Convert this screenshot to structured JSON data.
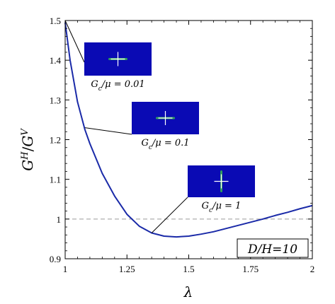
{
  "chart_data": {
    "type": "line",
    "xlabel": "λ",
    "ylabel": "G^H/G^V",
    "ylabel_parts": {
      "base1": "G",
      "sup1": "H",
      "slash": "/",
      "base2": "G",
      "sup2": "V"
    },
    "xlim": [
      1,
      2
    ],
    "ylim": [
      0.9,
      1.5
    ],
    "x_ticks": [
      1,
      1.25,
      1.5,
      1.75,
      2
    ],
    "x_tick_labels": [
      "1",
      "1.25",
      "1.5",
      "1.75",
      "2"
    ],
    "y_ticks": [
      0.9,
      1,
      1.1,
      1.2,
      1.3,
      1.4,
      1.5
    ],
    "y_tick_labels": [
      "0.9",
      "1",
      "1.1",
      "1.2",
      "1.3",
      "1.4",
      "1.5"
    ],
    "grid": false,
    "reference_line": {
      "y": 1.0,
      "style": "dashed",
      "color": "#9a9a9a"
    },
    "series": [
      {
        "color": "#1a2aa8",
        "x": [
          1.0,
          1.02,
          1.05,
          1.08,
          1.1,
          1.15,
          1.2,
          1.25,
          1.3,
          1.35,
          1.4,
          1.45,
          1.5,
          1.55,
          1.6,
          1.65,
          1.7,
          1.75,
          1.8,
          1.85,
          1.9,
          1.95,
          2.0
        ],
        "y": [
          1.495,
          1.4,
          1.295,
          1.225,
          1.19,
          1.115,
          1.058,
          1.012,
          0.982,
          0.965,
          0.957,
          0.955,
          0.957,
          0.962,
          0.968,
          0.976,
          0.984,
          0.992,
          1.0,
          1.009,
          1.017,
          1.026,
          1.034
        ]
      }
    ],
    "annotations": [
      {
        "label": "G_c/μ = 0.01",
        "prefix": "G",
        "sub": "c",
        "suffix": "/μ = 0.01",
        "point": [
          1.0,
          1.5
        ],
        "orientation": "horizontal"
      },
      {
        "label": "G_c/μ = 0.1",
        "prefix": "G",
        "sub": "c",
        "suffix": "/μ = 0.1",
        "point": [
          1.08,
          1.23
        ],
        "orientation": "horizontal"
      },
      {
        "label": "G_c/μ = 1",
        "prefix": "G",
        "sub": "c",
        "suffix": "/μ = 1",
        "point": [
          1.35,
          0.965
        ],
        "orientation": "vertical"
      }
    ],
    "inset_box": {
      "label": "D/H=10"
    },
    "colors": {
      "inset_fill": "#0a0ab4",
      "crack": "#2f9e5e",
      "cross": "#ffffff"
    }
  }
}
